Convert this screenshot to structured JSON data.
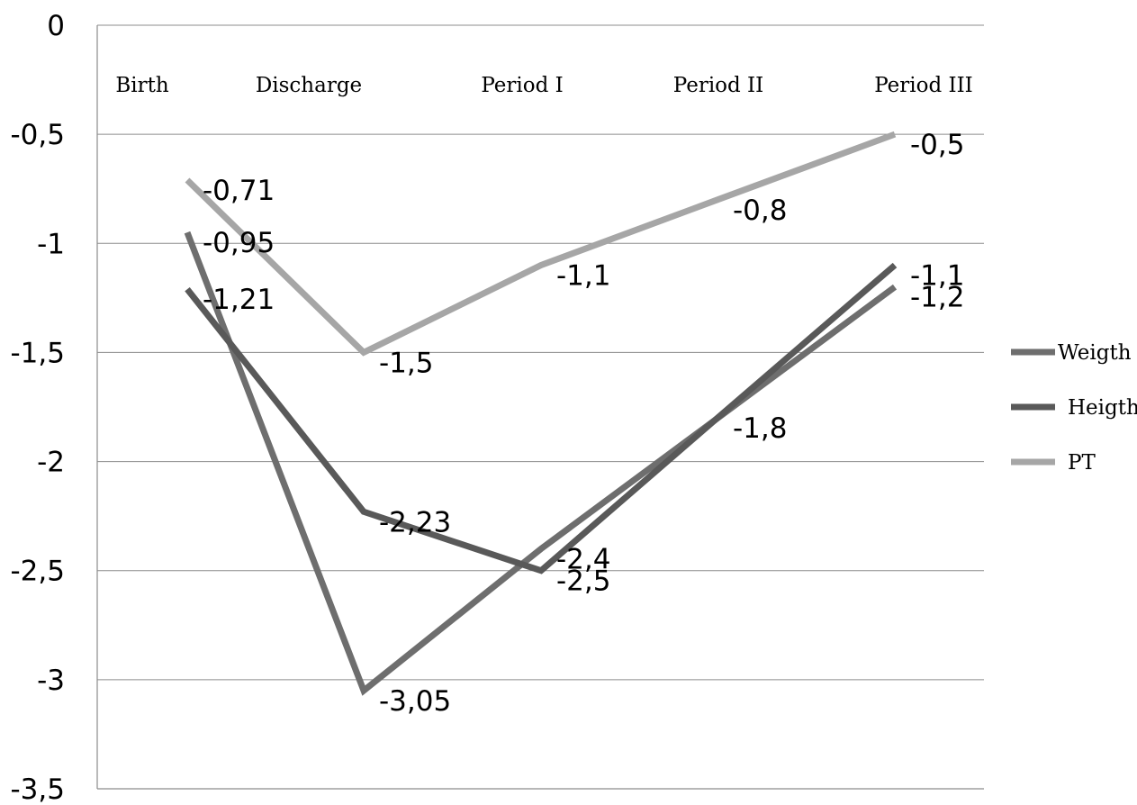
{
  "chart_data": {
    "type": "line",
    "title": "",
    "xlabel": "",
    "ylabel": "",
    "categories": [
      "Birth",
      "Discharge",
      "Period I",
      "Period II",
      "Period III"
    ],
    "ylim": [
      -3.5,
      0
    ],
    "yticks": [
      0,
      -0.5,
      -1,
      -1.5,
      -2,
      -2.5,
      -3,
      -3.5
    ],
    "ytick_labels": [
      "0",
      "-0,5",
      "-1",
      "-1,5",
      "-2",
      "-2,5",
      "-3",
      "-3,5"
    ],
    "grid": true,
    "legend_position": "right",
    "series": [
      {
        "name": "Weigth",
        "color": "#6e6e6e",
        "values": [
          -0.95,
          -3.05,
          -2.4,
          null,
          -1.2
        ],
        "labels": [
          "-0,95",
          "-3,05",
          "-2,4",
          "",
          "-1,2"
        ]
      },
      {
        "name": "Heigth",
        "color": "#595959",
        "values": [
          -1.21,
          -2.23,
          -2.5,
          -1.8,
          -1.1
        ],
        "labels": [
          "-1,21",
          "-2,23",
          "-2,5",
          "-1,8",
          "-1,1"
        ]
      },
      {
        "name": "PT",
        "color": "#a6a6a6",
        "values": [
          -0.71,
          -1.5,
          -1.1,
          -0.8,
          -0.5
        ],
        "labels": [
          "-0,71",
          "-1,5",
          "-1,1",
          "-0,8",
          "-0,5"
        ]
      }
    ]
  }
}
